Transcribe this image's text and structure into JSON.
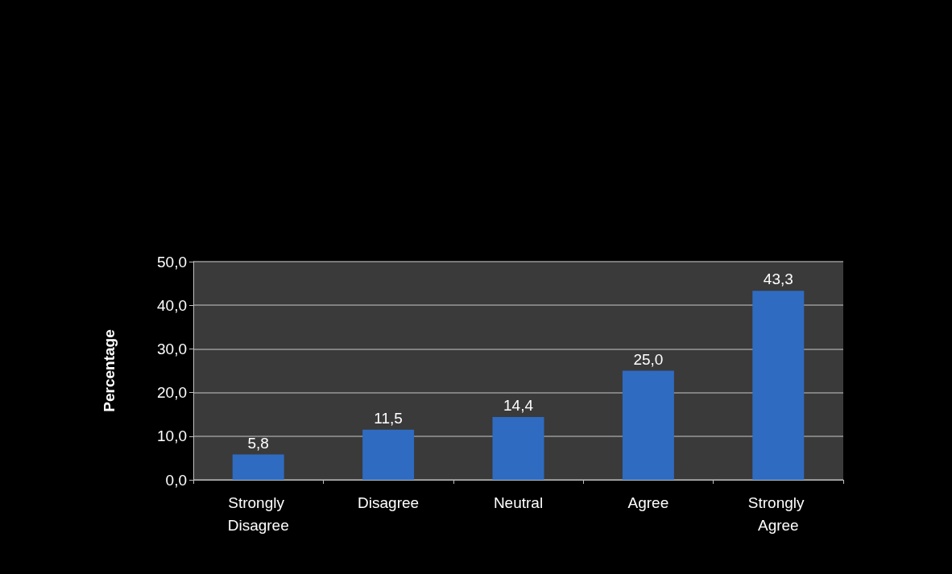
{
  "chart_data": {
    "type": "bar",
    "ylabel": "Percentage",
    "categories": [
      "Strongly Disagree",
      "Disagree",
      "Neutral",
      "Agree",
      "Strongly Agree"
    ],
    "values": [
      5.8,
      11.5,
      14.4,
      25.0,
      43.3
    ],
    "value_labels": [
      "5,8",
      "11,5",
      "14,4",
      "25,0",
      "43,3"
    ],
    "color": "#2f6bc0",
    "ylim": [
      0,
      50
    ],
    "yticks": [
      {
        "value": 0,
        "label": "0,0"
      },
      {
        "value": 10,
        "label": "10,0"
      },
      {
        "value": 20,
        "label": "20,0"
      },
      {
        "value": 30,
        "label": "30,0"
      },
      {
        "value": 40,
        "label": "40,0"
      },
      {
        "value": 50,
        "label": "50,0"
      }
    ],
    "grid": "y"
  }
}
